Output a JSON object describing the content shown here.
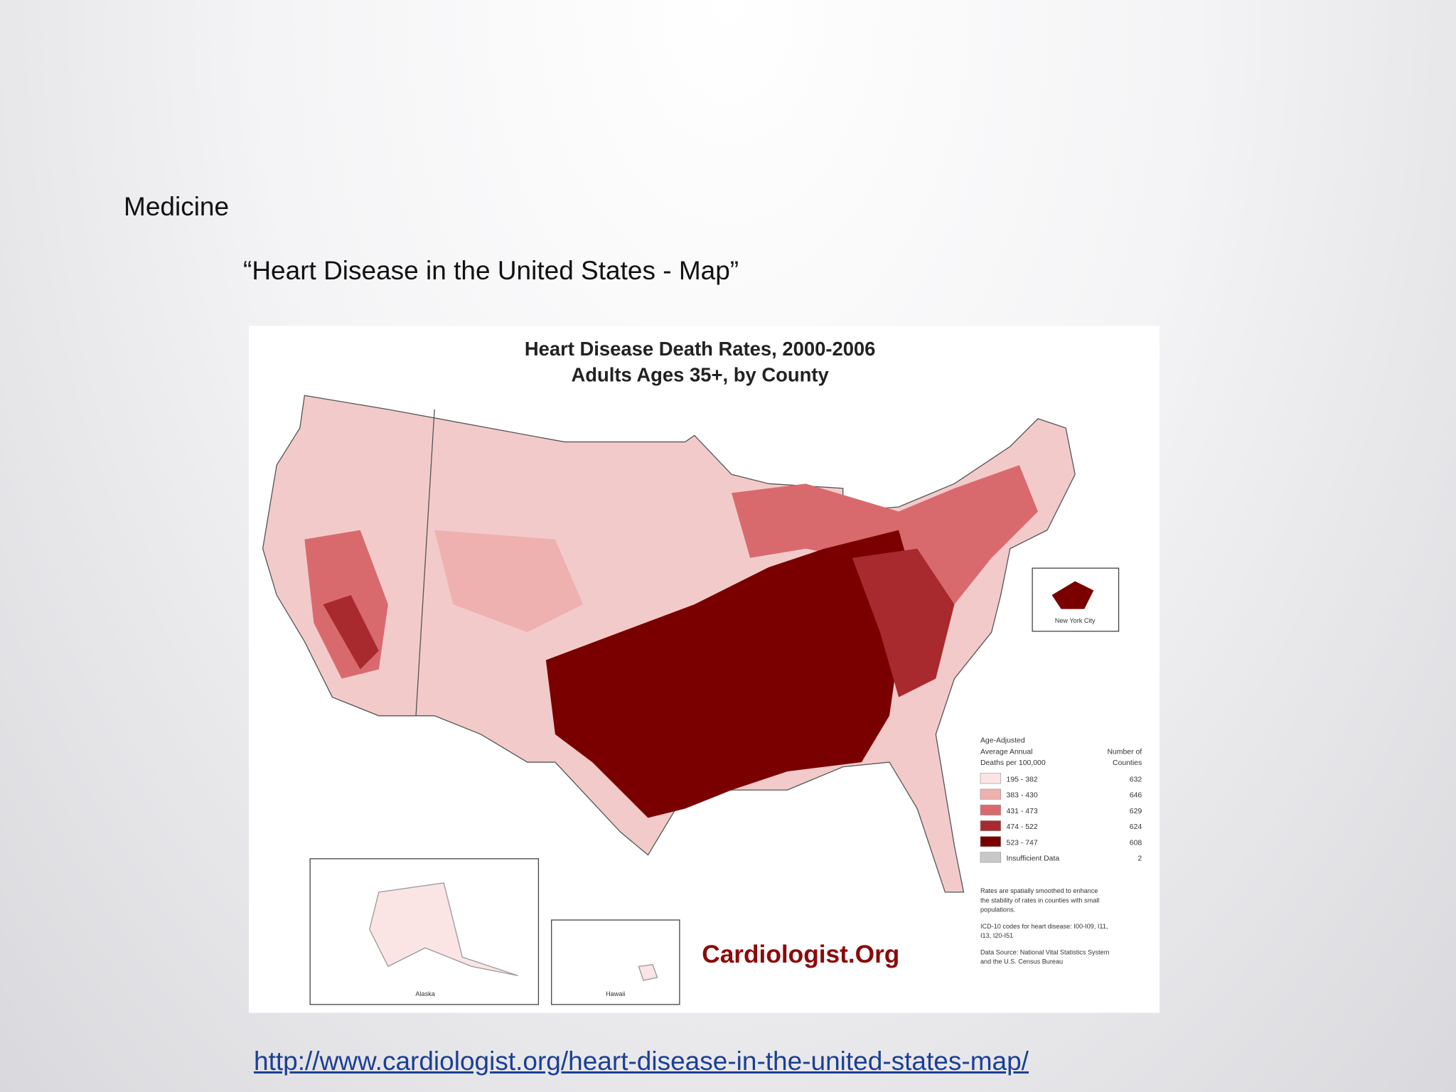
{
  "slide": {
    "heading": "Medicine",
    "title": "“Heart Disease in the United States - Map”",
    "link": "http://www.cardiologist.org/heart-disease-in-the-united-states-map/"
  },
  "map": {
    "title": "Heart Disease Death Rates, 2000-2006",
    "subtitle": "Adults Ages 35+, by County",
    "legend": {
      "heading": [
        "Age-Adjusted",
        "Average Annual",
        "Deaths per 100,000"
      ],
      "count_heading": [
        "Number of",
        "Counties"
      ],
      "items": [
        {
          "label": "195 - 382",
          "count": 632,
          "color": "#fbe4e4"
        },
        {
          "label": "383 - 430",
          "count": 646,
          "color": "#efb0b0"
        },
        {
          "label": "431 - 473",
          "count": 629,
          "color": "#d86a6e"
        },
        {
          "label": "474 - 522",
          "count": 624,
          "color": "#a92a2e"
        },
        {
          "label": "523 - 747",
          "count": 608,
          "color": "#7a0000"
        },
        {
          "label": "Insufficient Data",
          "count": 2,
          "color": "#c8c8c8"
        }
      ]
    },
    "notes": [
      [
        "Rates are spatially smoothed to enhance",
        "the stability of rates in counties with small",
        "populations."
      ],
      [
        "ICD-10 codes for heart disease: I00-I09, I11,",
        "I13, I20-I51"
      ],
      [
        "Data Source: National Vital Statistics System",
        "and the U.S. Census Bureau"
      ]
    ],
    "insets": {
      "new_york": "New York City",
      "alaska": "Alaska",
      "hawaii": "Hawaii"
    },
    "brand": "Cardiologist.Org"
  }
}
